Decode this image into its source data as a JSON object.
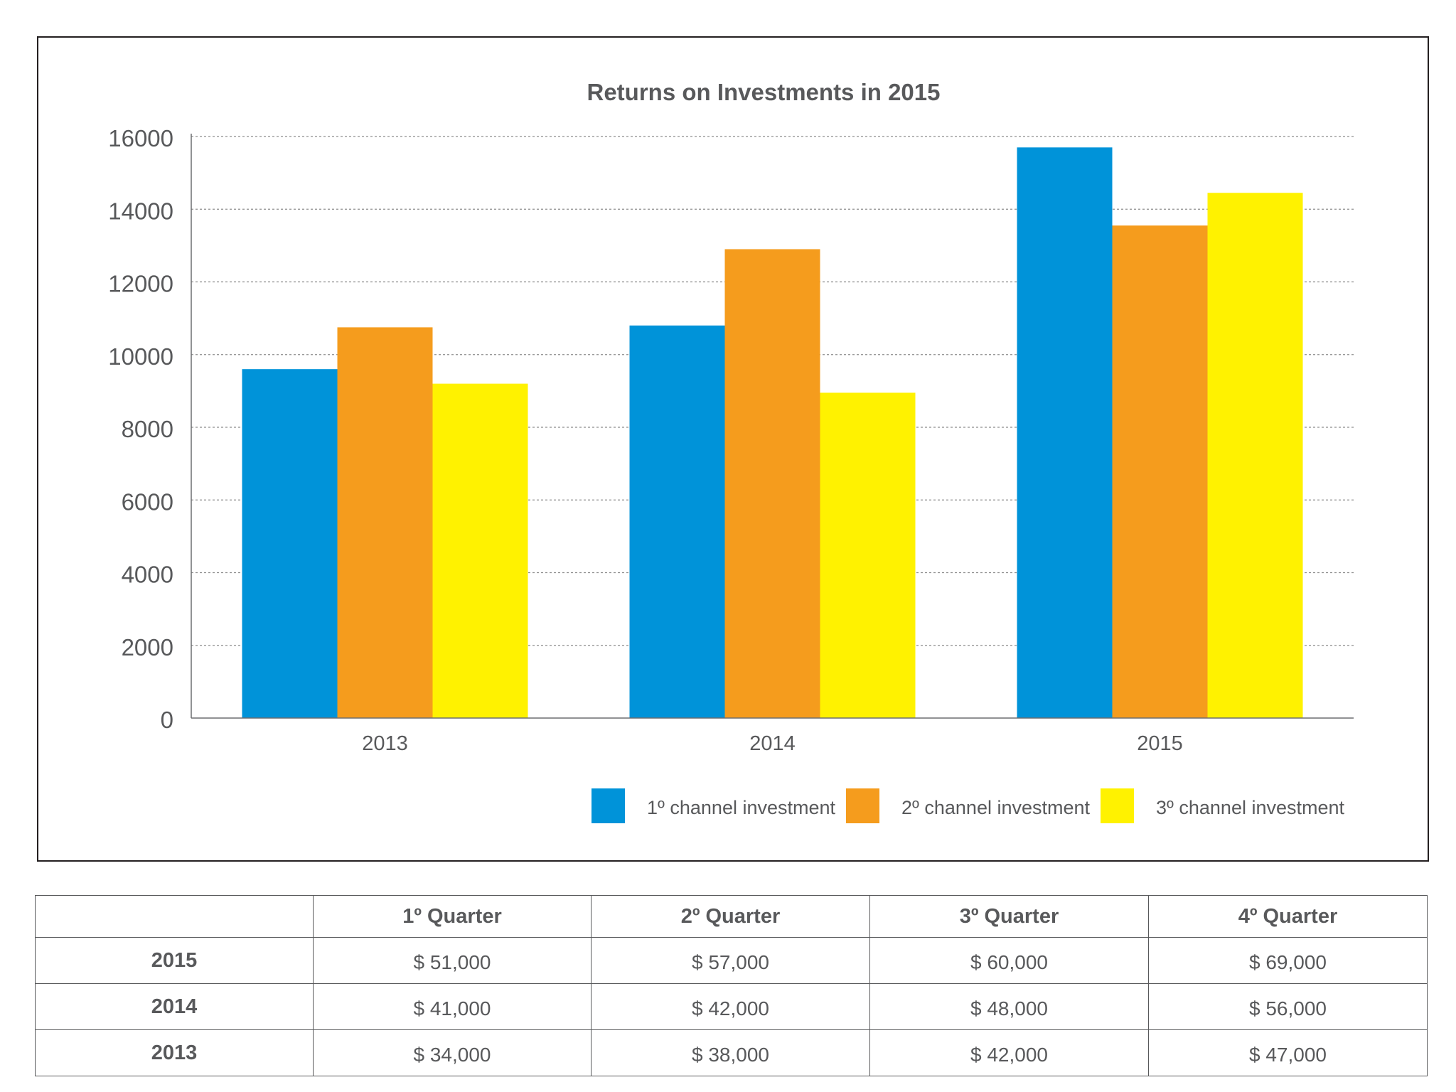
{
  "colors": {
    "channel1": "#0093d9",
    "channel2": "#f59c1d",
    "channel3": "#fff200",
    "text": "#58595b",
    "grid": "#8c8c8c"
  },
  "chart_data": {
    "type": "bar",
    "title": "Returns on Investments in 2015",
    "categories": [
      "2013",
      "2014",
      "2015"
    ],
    "series": [
      {
        "name": "1º channel investment",
        "color": "#0093d9",
        "values": [
          9600,
          10800,
          15700
        ]
      },
      {
        "name": "2º channel investment",
        "color": "#f59c1d",
        "values": [
          10750,
          12900,
          13550
        ]
      },
      {
        "name": "3º channel investment",
        "color": "#fff200",
        "values": [
          9200,
          8950,
          14450
        ]
      }
    ],
    "y_ticks": [
      "0",
      "2000",
      "4000",
      "6000",
      "8000",
      "10000",
      "12000",
      "14000",
      "16000"
    ],
    "ylim": [
      0,
      16000
    ],
    "grid": true,
    "legend_position": "bottom"
  },
  "table": {
    "corner": "",
    "headers": [
      "1º Quarter",
      "2º Quarter",
      "3º Quarter",
      "4º Quarter"
    ],
    "rows": [
      {
        "label": "2015",
        "values": [
          "$ 51,000",
          "$ 57,000",
          "$ 60,000",
          "$ 69,000"
        ]
      },
      {
        "label": "2014",
        "values": [
          "$ 41,000",
          "$ 42,000",
          "$ 48,000",
          "$ 56,000"
        ]
      },
      {
        "label": "2013",
        "values": [
          "$ 34,000",
          "$ 38,000",
          "$ 42,000",
          "$ 47,000"
        ]
      }
    ]
  }
}
